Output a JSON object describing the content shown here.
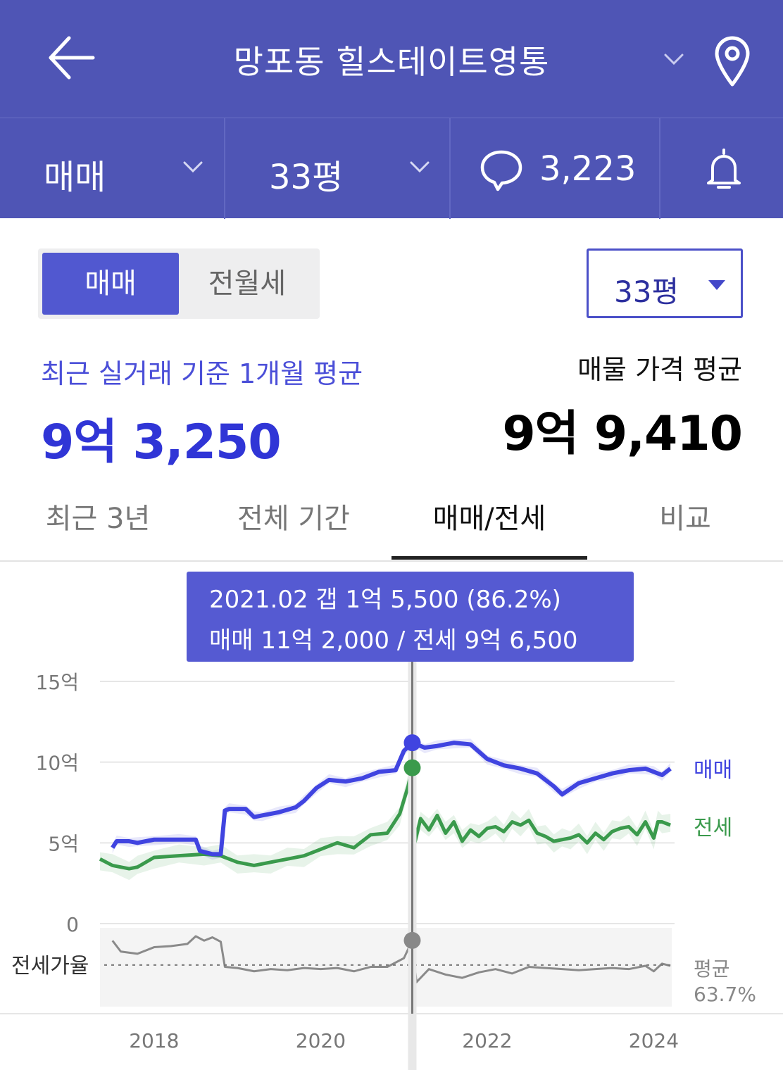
{
  "header": {
    "title": "망포동 힐스테이트영통",
    "back_icon": "arrow-left-icon",
    "dropdown_icon": "chevron-down-icon",
    "map_icon": "map-pin-icon"
  },
  "filter_bar": {
    "trade_type": "매매",
    "area": "33평",
    "comment_count": "3,223",
    "alarm_icon": "bell-icon"
  },
  "toggle": {
    "selected": "매매",
    "other": "전월세"
  },
  "size_select": {
    "value": "33평"
  },
  "summary": {
    "recent_label": "최근 실거래 기준 1개월 평균",
    "recent_value": "9억 3,250",
    "asking_label": "매물 가격 평균",
    "asking_value": "9억 9,410"
  },
  "tabs": [
    {
      "label": "최근 3년",
      "active": false
    },
    {
      "label": "전체 기간",
      "active": false
    },
    {
      "label": "매매/전세",
      "active": true
    },
    {
      "label": "비교",
      "active": false
    }
  ],
  "tooltip": {
    "line1": "2021.02  갭 1억 5,500 (86.2%)",
    "line2": "매매 11억 2,000 / 전세 9억 6,500"
  },
  "colors": {
    "header_bg": "#4f55b5",
    "accent": "#3035d6",
    "sale_line": "#4044e0",
    "lease_line": "#3a9a4c",
    "ratio_line": "#8a8a8a"
  },
  "chart_data": {
    "type": "line",
    "x_unit": "year",
    "y_unit": "억",
    "yticks": [
      "15억",
      "10억",
      "5억",
      "0"
    ],
    "ylim": [
      0,
      15
    ],
    "xticks": [
      "2018",
      "2020",
      "2022",
      "2024"
    ],
    "xlim": [
      2017.35,
      2024.25
    ],
    "cursor_x": 2021.1,
    "series": [
      {
        "name": "매매",
        "x": [
          2017.5,
          2017.55,
          2017.7,
          2017.8,
          2018.0,
          2018.3,
          2018.5,
          2018.55,
          2018.7,
          2018.8,
          2018.85,
          2018.9,
          2019.1,
          2019.2,
          2019.3,
          2019.5,
          2019.7,
          2019.8,
          2019.95,
          2020.1,
          2020.3,
          2020.5,
          2020.7,
          2020.9,
          2021.0,
          2021.1,
          2021.25,
          2021.4,
          2021.6,
          2021.8,
          2022.0,
          2022.2,
          2022.4,
          2022.6,
          2022.8,
          2022.9,
          2023.1,
          2023.3,
          2023.5,
          2023.7,
          2023.9,
          2024.0,
          2024.1,
          2024.2
        ],
        "y": [
          4.7,
          5.1,
          5.1,
          5.0,
          5.2,
          5.2,
          5.2,
          4.5,
          4.3,
          4.3,
          7.0,
          7.1,
          7.1,
          6.6,
          6.7,
          6.9,
          7.2,
          7.6,
          8.4,
          8.9,
          8.8,
          9.0,
          9.4,
          9.5,
          10.7,
          11.2,
          10.9,
          11.0,
          11.2,
          11.1,
          10.2,
          9.8,
          9.6,
          9.3,
          8.5,
          8.0,
          8.7,
          9.0,
          9.3,
          9.5,
          9.6,
          9.4,
          9.2,
          9.6
        ]
      },
      {
        "name": "전세",
        "x": [
          2017.35,
          2017.5,
          2017.7,
          2017.8,
          2018.0,
          2018.3,
          2018.6,
          2018.8,
          2019.0,
          2019.2,
          2019.4,
          2019.6,
          2019.8,
          2020.0,
          2020.2,
          2020.4,
          2020.6,
          2020.8,
          2020.95,
          2021.05,
          2021.1,
          2021.13,
          2021.2,
          2021.3,
          2021.4,
          2021.5,
          2021.6,
          2021.7,
          2021.8,
          2021.9,
          2022.0,
          2022.1,
          2022.2,
          2022.3,
          2022.4,
          2022.5,
          2022.6,
          2022.7,
          2022.8,
          2022.9,
          2023.0,
          2023.1,
          2023.2,
          2023.3,
          2023.4,
          2023.5,
          2023.6,
          2023.7,
          2023.8,
          2023.9,
          2024.0,
          2024.05,
          2024.1,
          2024.2
        ],
        "y": [
          4.0,
          3.6,
          3.4,
          3.5,
          4.1,
          4.2,
          4.3,
          4.2,
          3.8,
          3.6,
          3.8,
          4.0,
          4.2,
          4.6,
          5.0,
          4.7,
          5.5,
          5.6,
          6.8,
          8.5,
          9.65,
          5.0,
          6.5,
          5.8,
          6.7,
          5.6,
          6.3,
          5.1,
          5.8,
          5.4,
          5.9,
          6.0,
          5.7,
          6.3,
          6.1,
          6.4,
          5.6,
          5.4,
          5.1,
          5.2,
          5.3,
          5.5,
          5.0,
          5.6,
          5.2,
          5.7,
          5.9,
          6.0,
          5.5,
          6.3,
          5.3,
          6.3,
          6.3,
          6.1
        ]
      },
      {
        "name": "전세가율",
        "x": [
          2017.5,
          2017.6,
          2017.8,
          2018.0,
          2018.2,
          2018.4,
          2018.5,
          2018.6,
          2018.7,
          2018.8,
          2018.85,
          2019.0,
          2019.2,
          2019.4,
          2019.6,
          2019.8,
          2020.0,
          2020.2,
          2020.4,
          2020.6,
          2020.8,
          2021.0,
          2021.1,
          2021.15,
          2021.3,
          2021.5,
          2021.7,
          2021.9,
          2022.1,
          2022.3,
          2022.5,
          2022.7,
          2022.9,
          2023.1,
          2023.3,
          2023.5,
          2023.7,
          2023.9,
          2024.0,
          2024.1,
          2024.2
        ],
        "y": [
          86,
          76,
          74,
          80,
          81,
          83,
          90,
          86,
          89,
          85,
          62,
          61,
          58,
          60,
          59,
          61,
          60,
          61,
          58,
          62,
          62,
          70,
          86.2,
          48,
          60,
          55,
          52,
          57,
          60,
          56,
          62,
          61,
          60,
          59,
          60,
          61,
          60,
          63,
          58,
          65,
          63
        ]
      }
    ],
    "ratio_label": "전세가율",
    "ratio_avg_label": "평균",
    "ratio_avg_value": "63.7%",
    "ratio_avg": 63.7
  }
}
